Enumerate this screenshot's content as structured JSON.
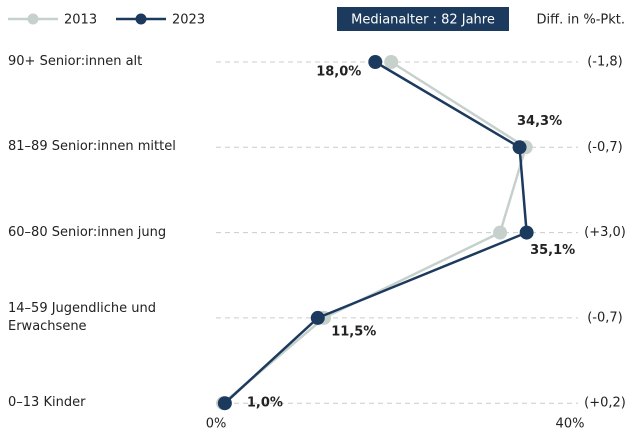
{
  "chart_data": {
    "type": "line",
    "categories": [
      "90+ Senior:innen alt",
      "81–89  Senior:innen mittel",
      "60–80 Senior:innen jung",
      "14–59 Jugendliche und\nErwachsene",
      "0–13 Kinder"
    ],
    "series": [
      {
        "name": "2013",
        "color": "#c6d1cc",
        "values": [
          19.8,
          35.0,
          32.1,
          12.2,
          0.8
        ]
      },
      {
        "name": "2023",
        "color": "#1c3a5e",
        "values": [
          18.0,
          34.3,
          35.1,
          11.5,
          1.0
        ],
        "value_labels": [
          "18,0%",
          "34,3%",
          "35,1%",
          "11,5%",
          "1,0%"
        ]
      }
    ],
    "xlim": [
      0,
      40
    ],
    "xticks": [
      {
        "value": 0,
        "label": "0%"
      },
      {
        "value": 40,
        "label": "40%"
      }
    ],
    "grid": true,
    "badge": "Medianalter : 82 Jahre",
    "diff_title": "Diff. in %-Pkt.",
    "diff_labels": [
      "(-1,8)",
      "(-0,7)",
      "(+3,0)",
      "(-0,7)",
      "(+0,2)"
    ]
  }
}
